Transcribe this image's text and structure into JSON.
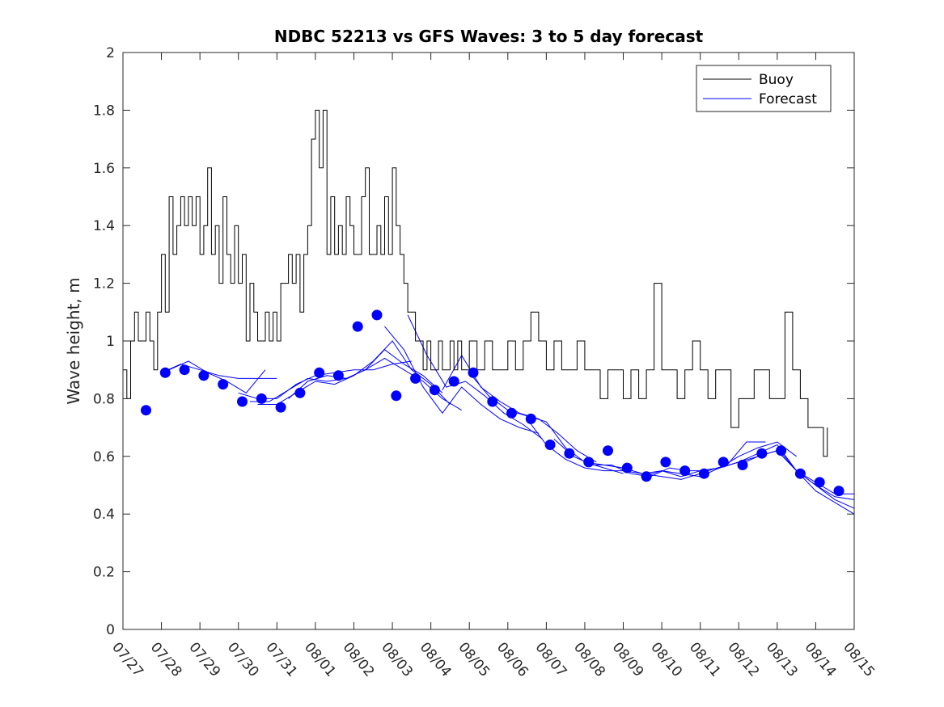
{
  "chart_data": {
    "type": "line",
    "title": "NDBC 52213 vs GFS Waves: 3 to 5 day forecast",
    "xlabel": "",
    "ylabel": "Wave height, m",
    "x_unit": "days (0 = 07/27)",
    "xlim": [
      0,
      19
    ],
    "ylim": [
      0,
      2
    ],
    "y_ticks": [
      0,
      0.2,
      0.4,
      0.6,
      0.8,
      1,
      1.2,
      1.4,
      1.6,
      1.8,
      2
    ],
    "x_tick_labels": [
      "07/27",
      "07/28",
      "07/29",
      "07/30",
      "07/31",
      "08/01",
      "08/02",
      "08/03",
      "08/04",
      "08/05",
      "08/06",
      "08/07",
      "08/08",
      "08/09",
      "08/10",
      "08/11",
      "08/12",
      "08/13",
      "08/14",
      "08/15"
    ],
    "grid": false,
    "legend": {
      "placement": "top-right",
      "entries": [
        "Buoy",
        "Forecast"
      ]
    },
    "colors": {
      "buoy": "#000000",
      "forecast": "#0000ff",
      "axis": "#262626"
    },
    "series": [
      {
        "name": "Buoy",
        "step": true,
        "x": [
          0,
          0.1,
          0.2,
          0.3,
          0.4,
          0.5,
          0.6,
          0.7,
          0.8,
          0.9,
          1.0,
          1.1,
          1.2,
          1.3,
          1.4,
          1.5,
          1.6,
          1.7,
          1.8,
          1.9,
          2.0,
          2.1,
          2.2,
          2.3,
          2.4,
          2.5,
          2.6,
          2.7,
          2.8,
          2.9,
          3.0,
          3.1,
          3.2,
          3.3,
          3.4,
          3.5,
          3.6,
          3.7,
          3.8,
          3.9,
          4.0,
          4.1,
          4.2,
          4.3,
          4.4,
          4.5,
          4.6,
          4.7,
          4.8,
          4.9,
          5.0,
          5.1,
          5.2,
          5.3,
          5.4,
          5.5,
          5.6,
          5.7,
          5.8,
          5.9,
          6.0,
          6.1,
          6.2,
          6.3,
          6.4,
          6.5,
          6.6,
          6.7,
          6.8,
          6.9,
          7.0,
          7.1,
          7.2,
          7.3,
          7.4,
          7.5,
          7.6,
          7.7,
          7.8,
          7.9,
          8.0,
          8.1,
          8.2,
          8.3,
          8.4,
          8.5,
          8.6,
          8.7,
          8.8,
          8.9,
          9.0,
          9.2,
          9.4,
          9.6,
          9.8,
          10.0,
          10.2,
          10.4,
          10.6,
          10.8,
          11.0,
          11.2,
          11.4,
          11.6,
          11.8,
          12.0,
          12.2,
          12.4,
          12.6,
          12.8,
          13.0,
          13.2,
          13.4,
          13.6,
          13.8,
          14.0,
          14.2,
          14.4,
          14.6,
          14.8,
          15.0,
          15.2,
          15.4,
          15.6,
          15.8,
          16.0,
          16.2,
          16.4,
          16.6,
          16.8,
          17.0,
          17.2,
          17.4,
          17.6,
          17.8,
          18.0,
          18.2,
          18.3
        ],
        "values": [
          0.9,
          0.8,
          1.0,
          1.1,
          1.0,
          1.0,
          1.1,
          1.0,
          0.9,
          1.1,
          1.3,
          1.1,
          1.5,
          1.3,
          1.4,
          1.5,
          1.4,
          1.5,
          1.4,
          1.5,
          1.3,
          1.4,
          1.6,
          1.3,
          1.4,
          1.2,
          1.5,
          1.3,
          1.2,
          1.4,
          1.2,
          1.3,
          1.0,
          1.2,
          1.1,
          1.0,
          1.0,
          1.1,
          1.0,
          1.1,
          1.0,
          1.2,
          1.2,
          1.3,
          1.2,
          1.3,
          1.1,
          1.3,
          1.4,
          1.7,
          1.8,
          1.6,
          1.8,
          1.3,
          1.5,
          1.3,
          1.4,
          1.3,
          1.5,
          1.4,
          1.3,
          1.3,
          1.5,
          1.6,
          1.3,
          1.3,
          1.4,
          1.3,
          1.5,
          1.3,
          1.6,
          1.4,
          1.3,
          1.2,
          1.1,
          1.1,
          1.0,
          1.0,
          0.9,
          1.0,
          0.9,
          0.9,
          1.0,
          0.9,
          0.9,
          1.0,
          0.9,
          1.0,
          0.9,
          0.9,
          1.0,
          0.9,
          1.0,
          0.9,
          0.9,
          1.0,
          0.9,
          1.0,
          1.1,
          1.0,
          0.9,
          1.0,
          0.9,
          0.9,
          1.0,
          0.9,
          0.9,
          0.8,
          0.9,
          0.9,
          0.8,
          0.9,
          0.8,
          0.9,
          1.2,
          0.9,
          0.9,
          0.8,
          0.9,
          1.0,
          0.9,
          0.8,
          0.9,
          0.9,
          0.7,
          0.8,
          0.8,
          0.9,
          0.9,
          0.8,
          0.8,
          1.1,
          0.9,
          0.8,
          0.7,
          0.7,
          0.6,
          0.7
        ]
      },
      {
        "name": "Forecast",
        "markers": true,
        "x": [
          0.6,
          1.1,
          1.6,
          2.1,
          2.6,
          3.1,
          3.6,
          4.1,
          4.6,
          5.1,
          5.6,
          6.1,
          6.6,
          7.1,
          7.6,
          8.1,
          8.6,
          9.1,
          9.6,
          10.1,
          10.6,
          11.1,
          11.6,
          12.1,
          12.6,
          13.1,
          13.6,
          14.1,
          14.6,
          15.1,
          15.6,
          16.1,
          16.6,
          17.1,
          17.6,
          18.1,
          18.6
        ],
        "values": [
          0.76,
          0.89,
          0.9,
          0.88,
          0.85,
          0.79,
          0.8,
          0.77,
          0.82,
          0.89,
          0.88,
          1.05,
          1.09,
          0.81,
          0.87,
          0.83,
          0.86,
          0.89,
          0.79,
          0.75,
          0.73,
          0.64,
          0.61,
          0.58,
          0.62,
          0.56,
          0.53,
          0.58,
          0.55,
          0.54,
          0.58,
          0.57,
          0.61,
          0.62,
          0.54,
          0.51,
          0.48
        ]
      }
    ],
    "forecast_runs": [
      {
        "x": [
          1.0,
          1.5,
          2.0,
          2.5,
          3.0,
          3.5,
          4.0
        ],
        "values": [
          0.89,
          0.92,
          0.9,
          0.88,
          0.87,
          0.87,
          0.87
        ]
      },
      {
        "x": [
          1.2,
          1.7,
          2.2,
          2.7,
          3.2,
          3.7
        ],
        "values": [
          0.9,
          0.93,
          0.89,
          0.86,
          0.82,
          0.9
        ]
      },
      {
        "x": [
          3.0,
          3.5,
          4.0,
          4.5,
          5.0,
          5.5,
          6.0,
          6.5,
          7.0,
          7.5
        ],
        "values": [
          0.82,
          0.8,
          0.8,
          0.85,
          0.88,
          0.89,
          0.9,
          0.9,
          0.92,
          0.93
        ]
      },
      {
        "x": [
          3.3,
          3.8,
          4.3,
          4.8,
          5.3,
          5.8,
          6.3,
          6.8,
          7.3,
          7.8,
          8.3
        ],
        "values": [
          0.79,
          0.79,
          0.83,
          0.87,
          0.86,
          0.87,
          0.9,
          0.97,
          0.92,
          0.88,
          0.82
        ]
      },
      {
        "x": [
          3.5,
          4.0,
          4.5,
          5.0,
          5.5,
          6.0,
          6.5,
          7.0,
          7.5,
          8.0,
          8.5
        ],
        "values": [
          0.78,
          0.78,
          0.82,
          0.86,
          0.85,
          0.88,
          0.93,
          1.0,
          0.9,
          0.85,
          0.78
        ]
      },
      {
        "x": [
          4.3,
          4.8,
          5.3,
          5.8,
          6.3,
          6.8,
          7.3,
          7.8,
          8.3,
          8.8
        ],
        "values": [
          0.8,
          0.86,
          0.88,
          0.87,
          0.9,
          0.94,
          0.9,
          0.86,
          0.8,
          0.76
        ]
      },
      {
        "x": [
          6.8,
          7.3,
          7.8,
          8.3,
          8.8,
          9.3,
          9.8,
          10.3,
          10.8
        ],
        "values": [
          1.05,
          0.97,
          0.84,
          0.75,
          0.84,
          0.78,
          0.73,
          0.7,
          0.68
        ]
      },
      {
        "x": [
          7.4,
          7.9,
          8.4,
          8.9,
          9.4,
          9.9,
          10.4,
          10.9
        ],
        "values": [
          1.09,
          0.95,
          0.84,
          0.86,
          0.81,
          0.75,
          0.71,
          0.66
        ]
      },
      {
        "x": [
          8.3,
          8.8,
          9.3,
          9.8,
          10.3,
          10.8,
          11.3,
          11.8,
          12.3
        ],
        "values": [
          0.83,
          0.95,
          0.84,
          0.79,
          0.75,
          0.73,
          0.68,
          0.62,
          0.58
        ]
      },
      {
        "x": [
          9.0,
          9.5,
          10.0,
          10.5,
          11.0,
          11.5,
          12.0,
          12.5,
          13.0
        ],
        "values": [
          0.89,
          0.81,
          0.76,
          0.74,
          0.72,
          0.63,
          0.58,
          0.56,
          0.54
        ]
      },
      {
        "x": [
          10.5,
          11.0,
          11.5,
          12.0,
          12.5,
          13.0,
          13.5,
          14.0,
          14.5,
          15.0
        ],
        "values": [
          0.73,
          0.64,
          0.59,
          0.56,
          0.55,
          0.55,
          0.54,
          0.53,
          0.52,
          0.54
        ]
      },
      {
        "x": [
          11.2,
          11.7,
          12.2,
          12.7,
          13.2,
          13.7,
          14.2,
          14.7,
          15.2,
          15.7,
          16.2,
          16.7
        ],
        "values": [
          0.66,
          0.6,
          0.57,
          0.57,
          0.54,
          0.53,
          0.56,
          0.55,
          0.55,
          0.57,
          0.65,
          0.65
        ]
      },
      {
        "x": [
          12.0,
          12.5,
          13.0,
          13.5,
          14.0,
          14.5,
          15.0,
          15.5,
          16.0,
          16.5,
          17.0,
          17.5
        ],
        "values": [
          0.58,
          0.57,
          0.56,
          0.54,
          0.55,
          0.53,
          0.55,
          0.56,
          0.6,
          0.63,
          0.65,
          0.6
        ]
      },
      {
        "x": [
          13.5,
          14.0,
          14.5,
          15.0,
          15.5,
          16.0,
          16.5,
          17.0,
          17.5,
          18.0,
          18.5,
          19.0
        ],
        "values": [
          0.53,
          0.55,
          0.54,
          0.53,
          0.56,
          0.58,
          0.6,
          0.62,
          0.55,
          0.51,
          0.47,
          0.47
        ]
      },
      {
        "x": [
          15.0,
          15.5,
          16.0,
          16.5,
          17.0,
          17.5,
          18.0,
          18.5,
          19.0
        ],
        "values": [
          0.55,
          0.56,
          0.58,
          0.61,
          0.64,
          0.55,
          0.5,
          0.45,
          0.42
        ]
      },
      {
        "x": [
          16.0,
          16.5,
          17.0,
          17.5,
          18.0,
          18.5,
          19.0
        ],
        "values": [
          0.57,
          0.6,
          0.62,
          0.55,
          0.48,
          0.44,
          0.4
        ]
      },
      {
        "x": [
          17.0,
          17.5,
          18.0,
          18.5,
          19.0
        ],
        "values": [
          0.63,
          0.55,
          0.5,
          0.46,
          0.45
        ]
      }
    ]
  }
}
